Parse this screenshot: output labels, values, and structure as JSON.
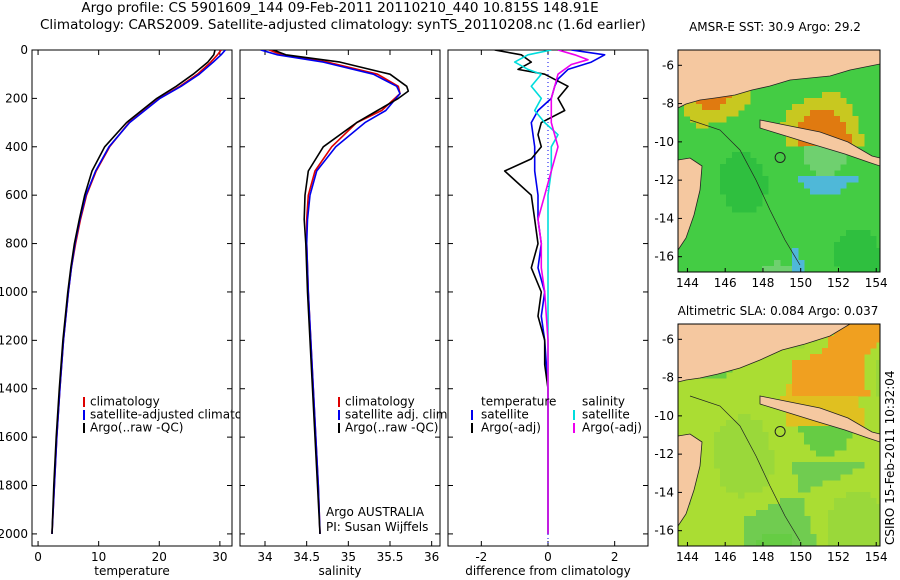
{
  "header": {
    "title_line1": "Argo profile: CS 5901609_144 09-Feb-2011 20110210_440 10.815S 148.91E",
    "title_line2": "Climatology: CARS2009. Satellite-adjusted climatology: synTS_20110208.nc (1.6d earlier)"
  },
  "footer_stamp": "CSIRO 15-Feb-2011 10:32:04",
  "colors": {
    "climatology": "#dd0000",
    "satellite": "#0000ee",
    "argo": "#000000",
    "sat_diff": "#00dddd",
    "argo_diff": "#ee00ee",
    "land": "#f5c8a0",
    "sea": "#44d044"
  },
  "chart_data": [
    {
      "type": "line",
      "id": "temperature",
      "xlabel": "temperature",
      "ylabel": "",
      "xlim": [
        -1,
        32
      ],
      "ylim": [
        2050,
        0
      ],
      "y_reversed": true,
      "x_ticks": [
        0,
        10,
        20,
        30
      ],
      "y_ticks": [
        0,
        200,
        400,
        600,
        800,
        1000,
        1200,
        1400,
        1600,
        1800,
        2000
      ],
      "legend": [
        "climatology",
        "satellite-adjusted climatology",
        "Argo(..raw -QC)"
      ],
      "legend_position": "bottom-right",
      "series": [
        {
          "name": "climatology",
          "color": "#dd0000",
          "depth": [
            0,
            20,
            50,
            100,
            150,
            200,
            300,
            400,
            500,
            600,
            700,
            800,
            900,
            1000,
            1200,
            1400,
            1600,
            1800,
            2000
          ],
          "values": [
            30.2,
            29.6,
            28.5,
            26.3,
            23.4,
            20.0,
            15.0,
            11.8,
            9.6,
            8.0,
            7.0,
            6.2,
            5.5,
            5.0,
            4.2,
            3.6,
            3.1,
            2.7,
            2.3
          ]
        },
        {
          "name": "satellite-adjusted climatology",
          "color": "#0000ee",
          "depth": [
            0,
            20,
            50,
            100,
            150,
            200,
            300,
            400,
            500,
            600,
            700,
            800,
            900,
            1000,
            1200,
            1400,
            1600,
            1800,
            2000
          ],
          "values": [
            30.9,
            30.2,
            28.9,
            26.6,
            23.6,
            20.1,
            15.1,
            11.7,
            9.5,
            7.9,
            6.9,
            6.1,
            5.5,
            5.0,
            4.2,
            3.6,
            3.1,
            2.7,
            2.3
          ]
        },
        {
          "name": "Argo(..raw -QC)",
          "color": "#000000",
          "depth": [
            0,
            20,
            50,
            100,
            150,
            200,
            300,
            400,
            500,
            600,
            700,
            800,
            900,
            1000,
            1200,
            1400,
            1600,
            1800,
            2000
          ],
          "values": [
            29.2,
            29.0,
            28.0,
            25.6,
            22.8,
            19.6,
            14.6,
            11.0,
            8.9,
            7.7,
            6.8,
            6.0,
            5.4,
            4.9,
            4.1,
            3.5,
            3.0,
            2.6,
            2.3
          ]
        }
      ]
    },
    {
      "type": "line",
      "id": "salinity",
      "xlabel": "salinity",
      "ylabel": "",
      "xlim": [
        33.7,
        36.1
      ],
      "ylim": [
        2050,
        0
      ],
      "y_reversed": true,
      "x_ticks": [
        34,
        34.5,
        35,
        35.5,
        36
      ],
      "legend": [
        "climatology",
        "satellite adj. clim.",
        "Argo(..raw -QC)"
      ],
      "legend_position": "bottom-right",
      "annotation_line1": "Argo AUSTRALIA",
      "annotation_line2": "PI: Susan Wijffels",
      "series": [
        {
          "name": "climatology",
          "color": "#dd0000",
          "depth": [
            0,
            20,
            50,
            100,
            150,
            180,
            250,
            300,
            400,
            500,
            600,
            700,
            800,
            1000,
            1200,
            1400,
            1600,
            1800,
            2000
          ],
          "values": [
            34.05,
            34.2,
            34.75,
            35.35,
            35.6,
            35.62,
            35.4,
            35.1,
            34.8,
            34.6,
            34.52,
            34.5,
            34.5,
            34.52,
            34.55,
            34.58,
            34.61,
            34.64,
            34.66
          ]
        },
        {
          "name": "satellite adj. clim.",
          "color": "#0000ee",
          "depth": [
            0,
            20,
            50,
            100,
            150,
            180,
            250,
            300,
            400,
            500,
            600,
            700,
            800,
            1000,
            1200,
            1400,
            1600,
            1800,
            2000
          ],
          "values": [
            33.95,
            34.15,
            34.7,
            35.3,
            35.58,
            35.62,
            35.45,
            35.2,
            34.85,
            34.62,
            34.54,
            34.51,
            34.5,
            34.52,
            34.55,
            34.58,
            34.61,
            34.64,
            34.66
          ]
        },
        {
          "name": "Argo(..raw -QC)",
          "color": "#000000",
          "depth": [
            0,
            20,
            50,
            100,
            150,
            170,
            200,
            250,
            300,
            400,
            500,
            600,
            700,
            800,
            1000,
            1200,
            1400,
            1600,
            1800,
            2000
          ],
          "values": [
            34.1,
            34.25,
            34.9,
            35.5,
            35.7,
            35.72,
            35.6,
            35.35,
            35.1,
            34.7,
            34.52,
            34.48,
            34.47,
            34.49,
            34.51,
            34.54,
            34.57,
            34.6,
            34.63,
            34.66
          ]
        }
      ]
    },
    {
      "type": "line",
      "id": "difference",
      "xlabel": "difference from climatology",
      "ylabel": "",
      "xlim": [
        -3.0,
        3.0
      ],
      "ylim": [
        2050,
        0
      ],
      "y_reversed": true,
      "x_ticks": [
        -2,
        0,
        2
      ],
      "legend_temperature_header": "temperature",
      "legend_salinity_header": "salinity",
      "legend": [
        "satellite",
        "Argo(-adj)",
        "satellite",
        "Argo(-adj)"
      ],
      "legend_position": "bottom",
      "series": [
        {
          "name": "temperature satellite",
          "color": "#0000ee",
          "depth": [
            0,
            20,
            50,
            80,
            120,
            150,
            200,
            250,
            300,
            400,
            500,
            600,
            700,
            800,
            900,
            1000,
            1100,
            1200,
            1400,
            1600,
            1800,
            2000
          ],
          "values": [
            0.7,
            1.7,
            1.3,
            0.6,
            0.3,
            0.2,
            0.1,
            -0.3,
            -0.5,
            -0.4,
            -0.4,
            -0.3,
            -0.3,
            -0.2,
            -0.3,
            -0.1,
            -0.2,
            -0.1,
            0,
            0,
            0,
            0
          ]
        },
        {
          "name": "temperature Argo(-adj)",
          "color": "#000000",
          "depth": [
            0,
            20,
            50,
            80,
            100,
            150,
            200,
            250,
            300,
            350,
            400,
            450,
            500,
            550,
            600,
            700,
            800,
            900,
            1000,
            1100,
            1200,
            1300,
            1400,
            1600,
            1800,
            2000
          ],
          "values": [
            -1.6,
            -0.8,
            -0.5,
            -0.9,
            -0.1,
            0.6,
            0.3,
            0.5,
            -0.2,
            -0.3,
            -0.2,
            -0.5,
            -1.3,
            -0.9,
            -0.5,
            -0.4,
            -0.3,
            -0.5,
            -0.2,
            -0.3,
            -0.1,
            -0.1,
            0,
            0,
            0,
            0
          ]
        },
        {
          "name": "salinity satellite",
          "color": "#00dddd",
          "depth": [
            0,
            20,
            50,
            80,
            100,
            150,
            200,
            250,
            300,
            350,
            400,
            500,
            600,
            700,
            800,
            1000,
            1200,
            1400,
            1600,
            1800,
            2000
          ],
          "values": [
            0.1,
            -0.6,
            -1.0,
            -0.6,
            -0.2,
            -0.5,
            -0.2,
            -0.4,
            -0.1,
            0.3,
            0.1,
            0.1,
            0,
            0,
            0,
            0,
            0,
            0,
            0,
            0,
            0
          ]
        },
        {
          "name": "salinity Argo(-adj)",
          "color": "#ee00ee",
          "depth": [
            0,
            20,
            40,
            60,
            100,
            150,
            200,
            250,
            300,
            400,
            500,
            600,
            700,
            800,
            900,
            1000,
            1200,
            1400,
            1600,
            1800,
            2000
          ],
          "values": [
            0.3,
            0.8,
            1.2,
            0.7,
            0.3,
            0.2,
            0.1,
            0.1,
            0.1,
            0.3,
            0.1,
            -0.1,
            -0.3,
            -0.2,
            -0.2,
            -0.1,
            0,
            0,
            0,
            0,
            0
          ]
        }
      ]
    },
    {
      "type": "heatmap",
      "id": "sst_map",
      "title": "AMSR-E SST: 30.9 Argo: 29.2",
      "xlim": [
        143.5,
        154.2
      ],
      "ylim": [
        -16.8,
        -5.2
      ],
      "x_ticks": [
        144,
        146,
        148,
        150,
        152,
        154
      ],
      "y_ticks": [
        -6,
        -8,
        -10,
        -12,
        -14,
        -16
      ],
      "argo_location": {
        "lon": 148.91,
        "lat": -10.815
      }
    },
    {
      "type": "heatmap",
      "id": "sla_map",
      "title": "Altimetric SLA: 0.084 Argo: 0.037",
      "xlim": [
        143.5,
        154.2
      ],
      "ylim": [
        -16.8,
        -5.2
      ],
      "x_ticks": [
        144,
        146,
        148,
        150,
        152,
        154
      ],
      "y_ticks": [
        -6,
        -8,
        -10,
        -12,
        -14,
        -16
      ],
      "argo_location": {
        "lon": 148.91,
        "lat": -10.815
      }
    }
  ]
}
